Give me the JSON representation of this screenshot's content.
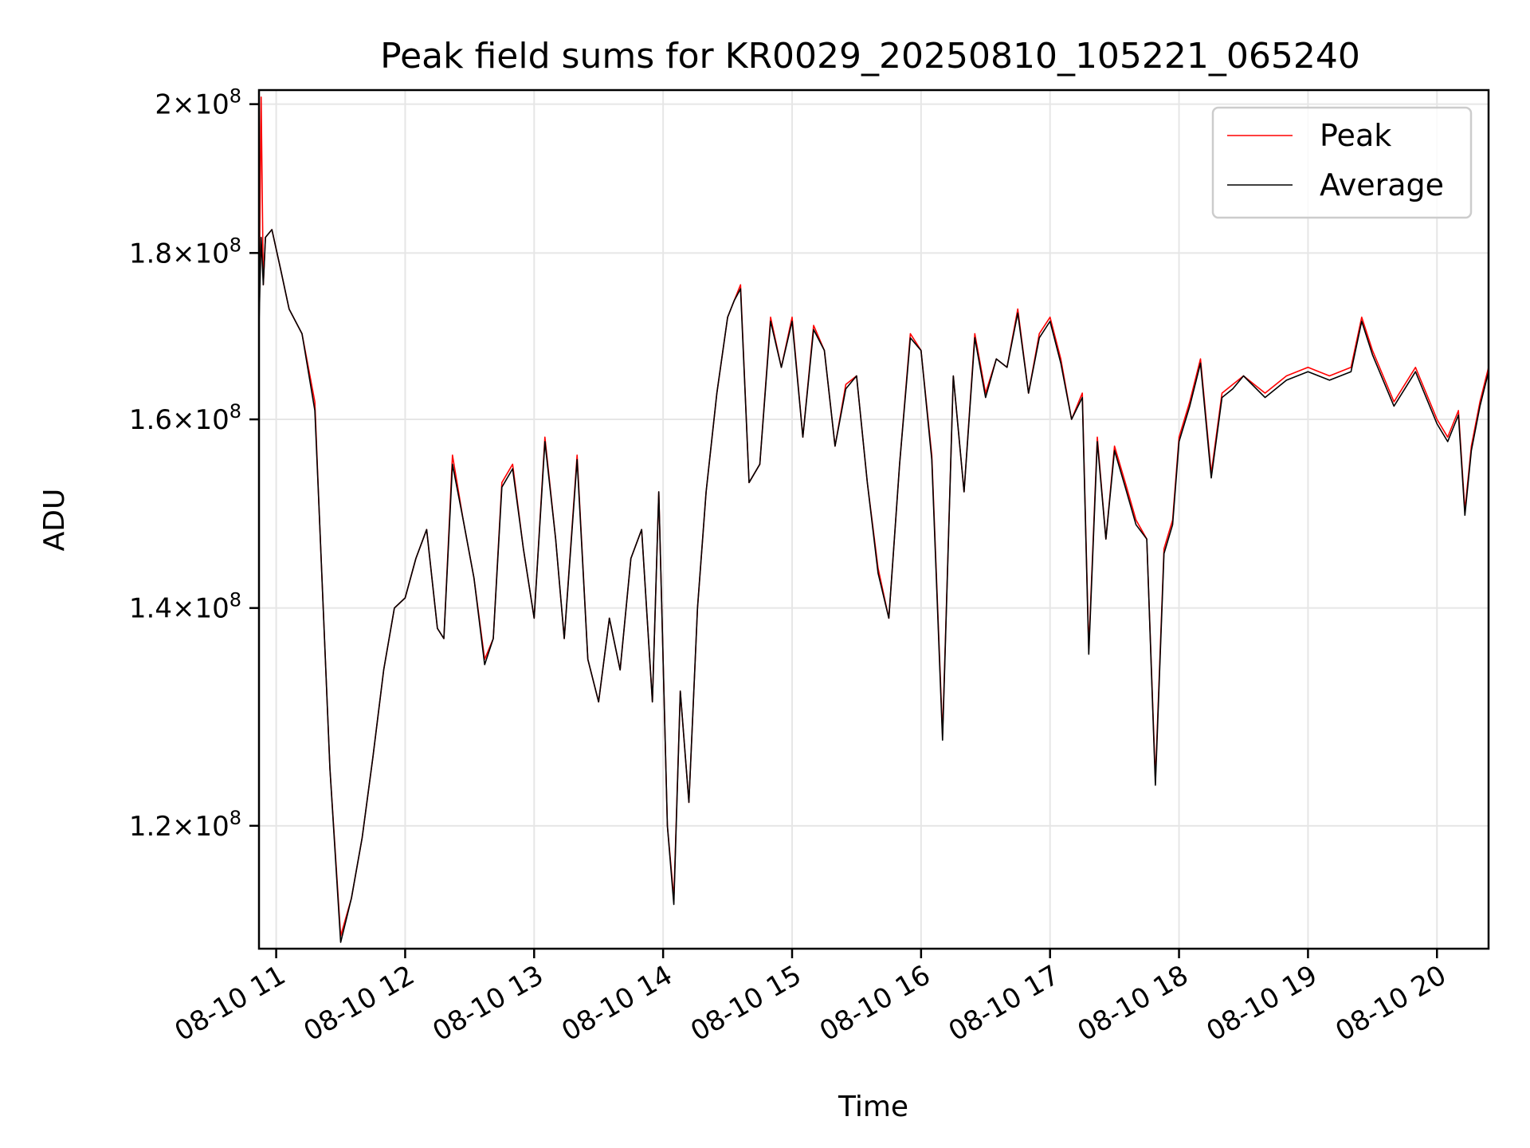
{
  "chart_data": {
    "type": "line",
    "title": "Peak field sums for KR0029_20250810_105221_065240",
    "xlabel": "Time",
    "ylabel": "ADU",
    "y_scale": "log",
    "grid": true,
    "legend_position": "top-right",
    "xlim": [
      "2025-08-10 10:52",
      "2025-08-10 20:24"
    ],
    "ylim": [
      110000000,
      202000000
    ],
    "x_ticks": [
      {
        "value": "2025-08-10 11:00",
        "label": "08-10 11"
      },
      {
        "value": "2025-08-10 12:00",
        "label": "08-10 12"
      },
      {
        "value": "2025-08-10 13:00",
        "label": "08-10 13"
      },
      {
        "value": "2025-08-10 14:00",
        "label": "08-10 14"
      },
      {
        "value": "2025-08-10 15:00",
        "label": "08-10 15"
      },
      {
        "value": "2025-08-10 16:00",
        "label": "08-10 16"
      },
      {
        "value": "2025-08-10 17:00",
        "label": "08-10 17"
      },
      {
        "value": "2025-08-10 18:00",
        "label": "08-10 18"
      },
      {
        "value": "2025-08-10 19:00",
        "label": "08-10 19"
      },
      {
        "value": "2025-08-10 20:00",
        "label": "08-10 20"
      }
    ],
    "y_ticks": [
      {
        "value": 120000000,
        "mantissa": "1.2",
        "exponent": "8"
      },
      {
        "value": 140000000,
        "mantissa": "1.4",
        "exponent": "8"
      },
      {
        "value": 160000000,
        "mantissa": "1.6",
        "exponent": "8"
      },
      {
        "value": 180000000,
        "mantissa": "1.8",
        "exponent": "8"
      },
      {
        "value": 200000000,
        "mantissa": "2",
        "exponent": "8"
      }
    ],
    "x": [
      "2025-08-10 10:52",
      "2025-08-10 10:53",
      "2025-08-10 10:54",
      "2025-08-10 10:55",
      "2025-08-10 10:58",
      "2025-08-10 11:02",
      "2025-08-10 11:06",
      "2025-08-10 11:12",
      "2025-08-10 11:18",
      "2025-08-10 11:20",
      "2025-08-10 11:25",
      "2025-08-10 11:30",
      "2025-08-10 11:35",
      "2025-08-10 11:40",
      "2025-08-10 11:45",
      "2025-08-10 11:50",
      "2025-08-10 11:55",
      "2025-08-10 12:00",
      "2025-08-10 12:05",
      "2025-08-10 12:10",
      "2025-08-10 12:15",
      "2025-08-10 12:18",
      "2025-08-10 12:22",
      "2025-08-10 12:27",
      "2025-08-10 12:32",
      "2025-08-10 12:37",
      "2025-08-10 12:41",
      "2025-08-10 12:45",
      "2025-08-10 12:50",
      "2025-08-10 12:55",
      "2025-08-10 13:00",
      "2025-08-10 13:05",
      "2025-08-10 13:10",
      "2025-08-10 13:14",
      "2025-08-10 13:20",
      "2025-08-10 13:25",
      "2025-08-10 13:30",
      "2025-08-10 13:35",
      "2025-08-10 13:40",
      "2025-08-10 13:45",
      "2025-08-10 13:50",
      "2025-08-10 13:55",
      "2025-08-10 13:58",
      "2025-08-10 14:02",
      "2025-08-10 14:05",
      "2025-08-10 14:08",
      "2025-08-10 14:12",
      "2025-08-10 14:16",
      "2025-08-10 14:20",
      "2025-08-10 14:25",
      "2025-08-10 14:30",
      "2025-08-10 14:33",
      "2025-08-10 14:36",
      "2025-08-10 14:40",
      "2025-08-10 14:45",
      "2025-08-10 14:50",
      "2025-08-10 14:55",
      "2025-08-10 15:00",
      "2025-08-10 15:05",
      "2025-08-10 15:10",
      "2025-08-10 15:15",
      "2025-08-10 15:20",
      "2025-08-10 15:25",
      "2025-08-10 15:30",
      "2025-08-10 15:35",
      "2025-08-10 15:40",
      "2025-08-10 15:45",
      "2025-08-10 15:50",
      "2025-08-10 15:55",
      "2025-08-10 16:00",
      "2025-08-10 16:05",
      "2025-08-10 16:10",
      "2025-08-10 16:15",
      "2025-08-10 16:20",
      "2025-08-10 16:25",
      "2025-08-10 16:30",
      "2025-08-10 16:35",
      "2025-08-10 16:40",
      "2025-08-10 16:45",
      "2025-08-10 16:50",
      "2025-08-10 16:55",
      "2025-08-10 17:00",
      "2025-08-10 17:05",
      "2025-08-10 17:10",
      "2025-08-10 17:15",
      "2025-08-10 17:18",
      "2025-08-10 17:22",
      "2025-08-10 17:26",
      "2025-08-10 17:30",
      "2025-08-10 17:35",
      "2025-08-10 17:40",
      "2025-08-10 17:45",
      "2025-08-10 17:49",
      "2025-08-10 17:53",
      "2025-08-10 17:57",
      "2025-08-10 18:00",
      "2025-08-10 18:05",
      "2025-08-10 18:10",
      "2025-08-10 18:15",
      "2025-08-10 18:20",
      "2025-08-10 18:25",
      "2025-08-10 18:30",
      "2025-08-10 18:40",
      "2025-08-10 18:50",
      "2025-08-10 19:00",
      "2025-08-10 19:10",
      "2025-08-10 19:20",
      "2025-08-10 19:25",
      "2025-08-10 19:30",
      "2025-08-10 19:40",
      "2025-08-10 19:50",
      "2025-08-10 20:00",
      "2025-08-10 20:05",
      "2025-08-10 20:10",
      "2025-08-10 20:13",
      "2025-08-10 20:16",
      "2025-08-10 20:20",
      "2025-08-10 20:24"
    ],
    "series": [
      {
        "name": "Peak",
        "color": "#ff0000",
        "values": [
          172000000,
          201000000,
          176000000,
          182000000,
          183000000,
          178000000,
          173000000,
          170000000,
          162000000,
          150000000,
          125000000,
          111000000,
          114000000,
          119000000,
          126000000,
          134000000,
          140000000,
          141000000,
          145000000,
          148000000,
          138000000,
          137000000,
          156000000,
          149000000,
          143000000,
          135000000,
          137000000,
          153000000,
          155000000,
          146000000,
          139000000,
          158000000,
          147000000,
          137000000,
          156000000,
          135000000,
          131000000,
          139000000,
          134000000,
          145000000,
          148000000,
          131000000,
          152000000,
          120000000,
          114000000,
          132000000,
          122000000,
          140000000,
          152000000,
          163000000,
          172000000,
          174000000,
          176000000,
          153000000,
          155000000,
          172000000,
          166000000,
          172000000,
          158000000,
          171000000,
          168000000,
          157000000,
          164000000,
          165000000,
          153000000,
          144000000,
          139000000,
          155000000,
          170000000,
          168000000,
          156000000,
          128000000,
          165000000,
          152000000,
          170000000,
          163000000,
          167000000,
          166000000,
          173000000,
          163000000,
          170000000,
          172000000,
          167000000,
          160000000,
          163000000,
          136000000,
          158000000,
          147000000,
          157000000,
          153000000,
          149000000,
          147000000,
          124000000,
          146000000,
          149000000,
          158000000,
          162000000,
          167000000,
          154000000,
          163000000,
          164000000,
          165000000,
          163000000,
          165000000,
          166000000,
          165000000,
          166000000,
          172000000,
          168000000,
          162000000,
          166000000,
          160000000,
          158000000,
          161000000,
          150000000,
          157000000,
          162000000,
          166000000
        ],
        "style": "solid"
      },
      {
        "name": "Average",
        "color": "#000000",
        "values": [
          171000000,
          182000000,
          176000000,
          182000000,
          183000000,
          178000000,
          173000000,
          170000000,
          161000000,
          150000000,
          125000000,
          110500000,
          114000000,
          119000000,
          126000000,
          134000000,
          140000000,
          141000000,
          145000000,
          148000000,
          138000000,
          137000000,
          155000000,
          149000000,
          143000000,
          134500000,
          137000000,
          152500000,
          154500000,
          146000000,
          139000000,
          157500000,
          147000000,
          137000000,
          155500000,
          135000000,
          131000000,
          139000000,
          134000000,
          145000000,
          148000000,
          131000000,
          152000000,
          120000000,
          113500000,
          132000000,
          122000000,
          140000000,
          152000000,
          163000000,
          172000000,
          174000000,
          175500000,
          153000000,
          155000000,
          171500000,
          166000000,
          171500000,
          158000000,
          170500000,
          168000000,
          157000000,
          163500000,
          165000000,
          153000000,
          143500000,
          139000000,
          155000000,
          169500000,
          168000000,
          155500000,
          127500000,
          165000000,
          152000000,
          169500000,
          162500000,
          167000000,
          166000000,
          172500000,
          163000000,
          169500000,
          171500000,
          166500000,
          160000000,
          162500000,
          135500000,
          157500000,
          147000000,
          156500000,
          152500000,
          148500000,
          147000000,
          123500000,
          145500000,
          148500000,
          157500000,
          161500000,
          166500000,
          153500000,
          162500000,
          163500000,
          165000000,
          162500000,
          164500000,
          165500000,
          164500000,
          165500000,
          171500000,
          167500000,
          161500000,
          165500000,
          159500000,
          157500000,
          160500000,
          149500000,
          156500000,
          161500000,
          165500000
        ],
        "style": "solid"
      }
    ]
  }
}
